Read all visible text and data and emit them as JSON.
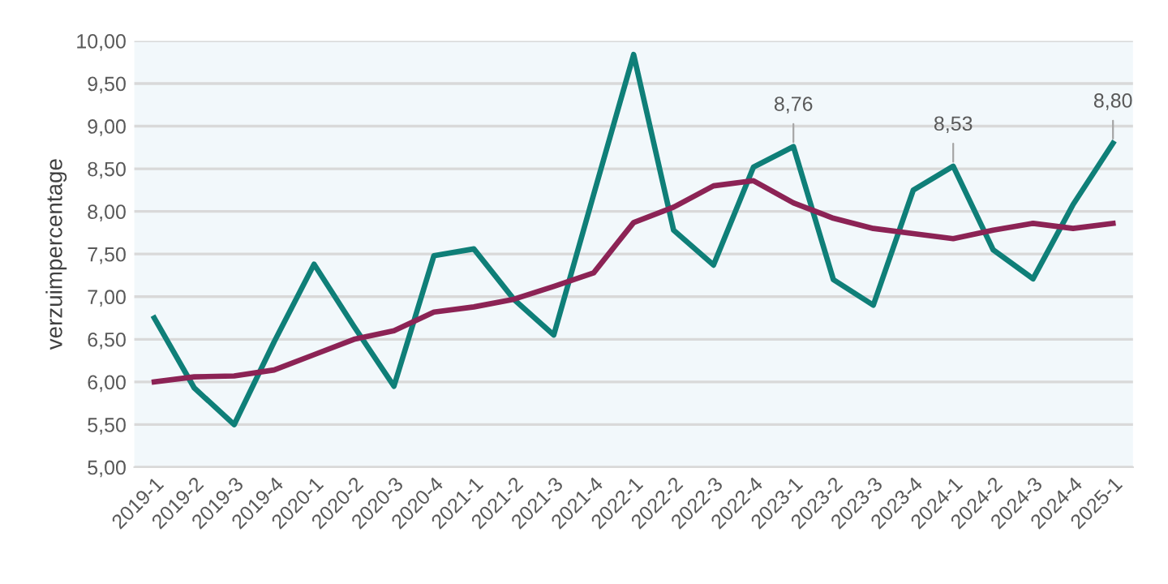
{
  "chart_data": {
    "type": "line",
    "ylabel": "verzuimpercentage",
    "categories": [
      "2019-1",
      "2019-2",
      "2019-3",
      "2019-4",
      "2020-1",
      "2020-2",
      "2020-3",
      "2020-4",
      "2021-1",
      "2021-2",
      "2021-3",
      "2021-4",
      "2022-1",
      "2022-2",
      "2022-3",
      "2022-4",
      "2023-1",
      "2023-2",
      "2023-3",
      "2023-4",
      "2024-1",
      "2024-2",
      "2024-3",
      "2024-4",
      "2025-1"
    ],
    "series": [
      {
        "color": "#0f7f78",
        "values": [
          6.75,
          5.93,
          5.5,
          6.47,
          7.38,
          6.65,
          5.95,
          7.48,
          7.56,
          6.97,
          6.55,
          8.2,
          9.84,
          7.78,
          7.37,
          8.52,
          8.76,
          7.2,
          6.9,
          8.25,
          8.53,
          7.55,
          7.21,
          8.08,
          8.8
        ],
        "value_labels": [
          null,
          null,
          null,
          null,
          null,
          null,
          null,
          null,
          null,
          null,
          null,
          null,
          null,
          null,
          null,
          null,
          "8,76",
          null,
          null,
          null,
          "8,53",
          null,
          null,
          null,
          "8,80"
        ]
      },
      {
        "color": "#8c2355",
        "values": [
          6.0,
          6.06,
          6.07,
          6.14,
          6.32,
          6.5,
          6.6,
          6.82,
          6.88,
          6.97,
          7.12,
          7.28,
          7.87,
          8.05,
          8.3,
          8.36,
          8.1,
          7.92,
          7.8,
          7.74,
          7.68,
          7.78,
          7.86,
          7.8,
          7.86
        ]
      }
    ],
    "ylim": [
      5,
      10
    ],
    "yticks": [
      {
        "value": 5,
        "label": "5,00"
      },
      {
        "value": 5.5,
        "label": "5,50"
      },
      {
        "value": 6,
        "label": "6,00"
      },
      {
        "value": 6.5,
        "label": "6,50"
      },
      {
        "value": 7,
        "label": "7,00"
      },
      {
        "value": 7.5,
        "label": "7,50"
      },
      {
        "value": 8,
        "label": "8,00"
      },
      {
        "value": 8.5,
        "label": "8,50"
      },
      {
        "value": 9,
        "label": "9,00"
      },
      {
        "value": 9.5,
        "label": "9,50"
      },
      {
        "value": 10,
        "label": "10,00"
      }
    ],
    "grid": "y",
    "marker": "none",
    "line_style": "solid"
  }
}
